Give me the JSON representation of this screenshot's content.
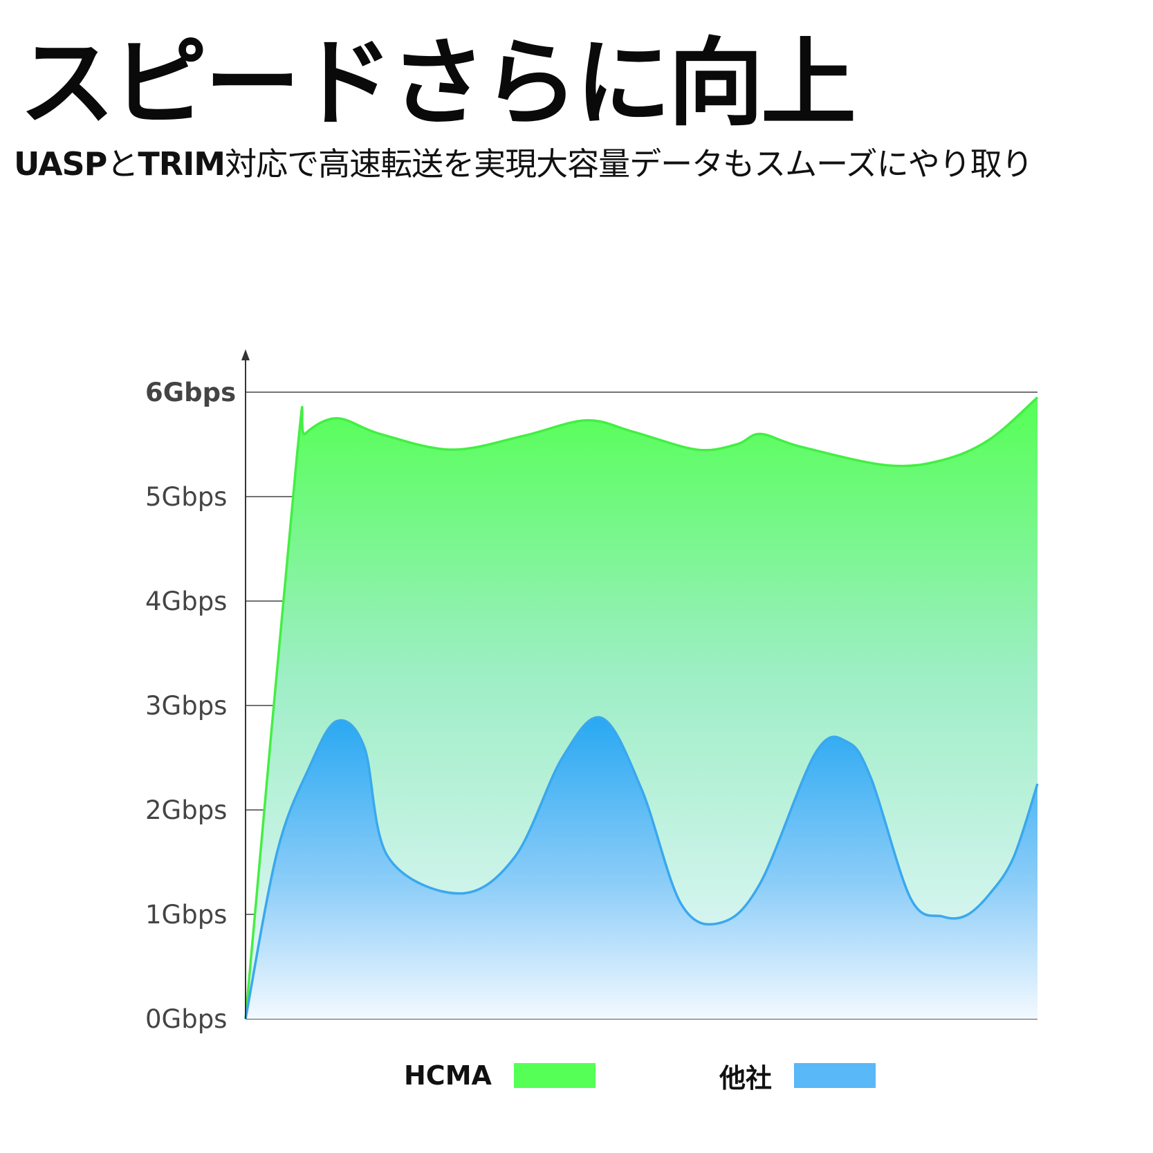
{
  "header": {
    "title": "スピードさらに向上",
    "subtitle_b1": "UASP",
    "subtitle_t1": "と",
    "subtitle_b2": "TRIM",
    "subtitle_t2": "対応で高速転送を実現大容量データもスムーズにやり取り"
  },
  "chart_data": {
    "type": "area",
    "y_ticks": [
      "0Gbps",
      "1Gbps",
      "2Gbps",
      "3Gbps",
      "4Gbps",
      "5Gbps",
      "6Gbps"
    ],
    "ylim": [
      0,
      6
    ],
    "xlim": [
      0,
      100
    ],
    "grid": true,
    "legend_position": "bottom",
    "series": [
      {
        "name": "HCMA",
        "color": "#55ff55",
        "x": [
          0,
          6.5,
          7.5,
          11.5,
          17,
          26,
          35,
          43,
          49,
          57,
          62,
          65,
          70,
          81,
          88,
          94,
          100
        ],
        "y": [
          0,
          5.4,
          5.6,
          5.75,
          5.6,
          5.45,
          5.58,
          5.73,
          5.62,
          5.45,
          5.5,
          5.6,
          5.48,
          5.3,
          5.35,
          5.55,
          5.95
        ]
      },
      {
        "name": "他社",
        "color": "#58b8f8",
        "x": [
          0,
          4,
          8,
          11.5,
          15,
          18,
          27,
          34,
          40,
          45,
          50,
          55,
          60,
          65,
          72,
          76,
          79,
          84,
          88,
          91,
          94,
          97,
          100
        ],
        "y": [
          0,
          1.6,
          2.4,
          2.85,
          2.6,
          1.55,
          1.2,
          1.55,
          2.5,
          2.88,
          2.2,
          1.1,
          0.92,
          1.3,
          2.55,
          2.65,
          2.3,
          1.15,
          0.98,
          0.99,
          1.2,
          1.55,
          2.25
        ]
      }
    ]
  }
}
